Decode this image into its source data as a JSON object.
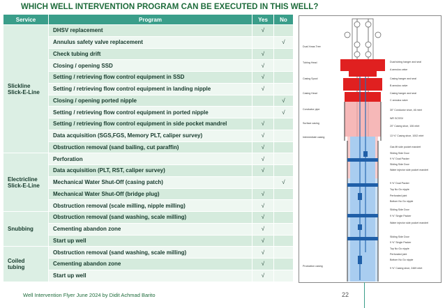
{
  "title": "WHICH WELL INTERVENTION PROGRAM CAN BE EXECUTED IN THIS WELL?",
  "table": {
    "header": [
      "Service",
      "Program",
      "Yes",
      "No"
    ],
    "groups": [
      {
        "service": [
          "Slickline",
          "Slick-E-Line"
        ],
        "rows": [
          {
            "program": "DHSV replacement",
            "yes": "√"
          },
          {
            "program": "Annulus safety valve replacement",
            "no": "√"
          },
          {
            "program": "Check tubing drift",
            "yes": "√"
          },
          {
            "program": "Closing / opening SSD",
            "yes": "√"
          },
          {
            "program": "Setting / retrieving flow control equipment in SSD",
            "yes": "√"
          },
          {
            "program": "Setting / retrieving flow control equipment in landing nipple",
            "yes": "√"
          },
          {
            "program": "Closing / opening ported nipple",
            "no": "√"
          },
          {
            "program": "Setting / retrieving flow control equipment in ported nipple",
            "no": "√"
          },
          {
            "program": "Setting / retrieving flow control equipment in side pocket mandrel",
            "yes": "√"
          },
          {
            "program": "Data acquisition (SGS,FGS, Memory PLT, caliper survey)",
            "yes": "√"
          },
          {
            "program": "Obstruction removal (sand bailing, cut paraffin)",
            "yes": "√"
          }
        ]
      },
      {
        "service": [
          "Electricline",
          "Slick-E-Line"
        ],
        "rows": [
          {
            "program": "Perforation",
            "yes": "√"
          },
          {
            "program": "Data acquisition (PLT, RST, caliper survey)",
            "yes": "√"
          },
          {
            "program": "Mechanical Water Shut-Off (casing patch)",
            "no": "√"
          },
          {
            "program": "Mechanical Water Shut-Off (bridge plug)",
            "yes": "√"
          },
          {
            "program": "Obstruction removal (scale milling, nipple milling)",
            "yes": "√"
          }
        ]
      },
      {
        "service": [
          "Snubbing"
        ],
        "rows": [
          {
            "program": "Obstruction removal (sand washing, scale milling)",
            "yes": "√"
          },
          {
            "program": "Cementing abandon zone",
            "yes": "√"
          },
          {
            "program": "Start up well",
            "yes": "√"
          }
        ]
      },
      {
        "service": [
          "Coiled",
          "tubing"
        ],
        "rows": [
          {
            "program": "Obstruction removal (sand washing, scale milling)",
            "yes": "√"
          },
          {
            "program": "Cementing abandon zone",
            "yes": "√"
          },
          {
            "program": "Start up well",
            "yes": "√"
          }
        ]
      }
    ]
  },
  "diagram": {
    "left_labels": [
      "Dual Xmas Tree",
      "Tubing Head",
      "Casing Spool",
      "Casing Head",
      "Conductor pipe",
      "Surface casing",
      "Intermediate casing",
      "Production casing"
    ],
    "right_labels": [
      "Dual tubing hanger and seal",
      "A annulus valve",
      "Casing hanger and seal",
      "B annulus valve",
      "Casing hanger and seal",
      "C annulus valve",
      "30\" Conductor shoe, 46 mbrt",
      "WR SCSSV",
      "20\" Casing shoe, 106 mbrt",
      "13 ⅜\" Casing shoe, 1002 mbrt",
      "Gas lift side pocket mandrel",
      "Sliding Side Door",
      "9 ⅝\" Dual Packer",
      "Sliding Side Door",
      "Water injector side pocket mandrel",
      "9 ⅝\" Dual Packer",
      "Top No Go nipple",
      "Perforated joint",
      "Bottom No Go nipple",
      "Sliding Side Door",
      "9 ⅝\" Single Packer",
      "Water injector side pocket mandrel",
      "Sliding Side Door",
      "9 ⅝\" Single Packer",
      "Top No Go nipple",
      "Perforated joint",
      "Bottom No Go nipple",
      "9 ⅝\" Casing shoe, 2469 mbrt"
    ]
  },
  "footer": {
    "text": "Well Intervention Flyer June 2024 by Didit Achmad Barito",
    "page": "22"
  }
}
